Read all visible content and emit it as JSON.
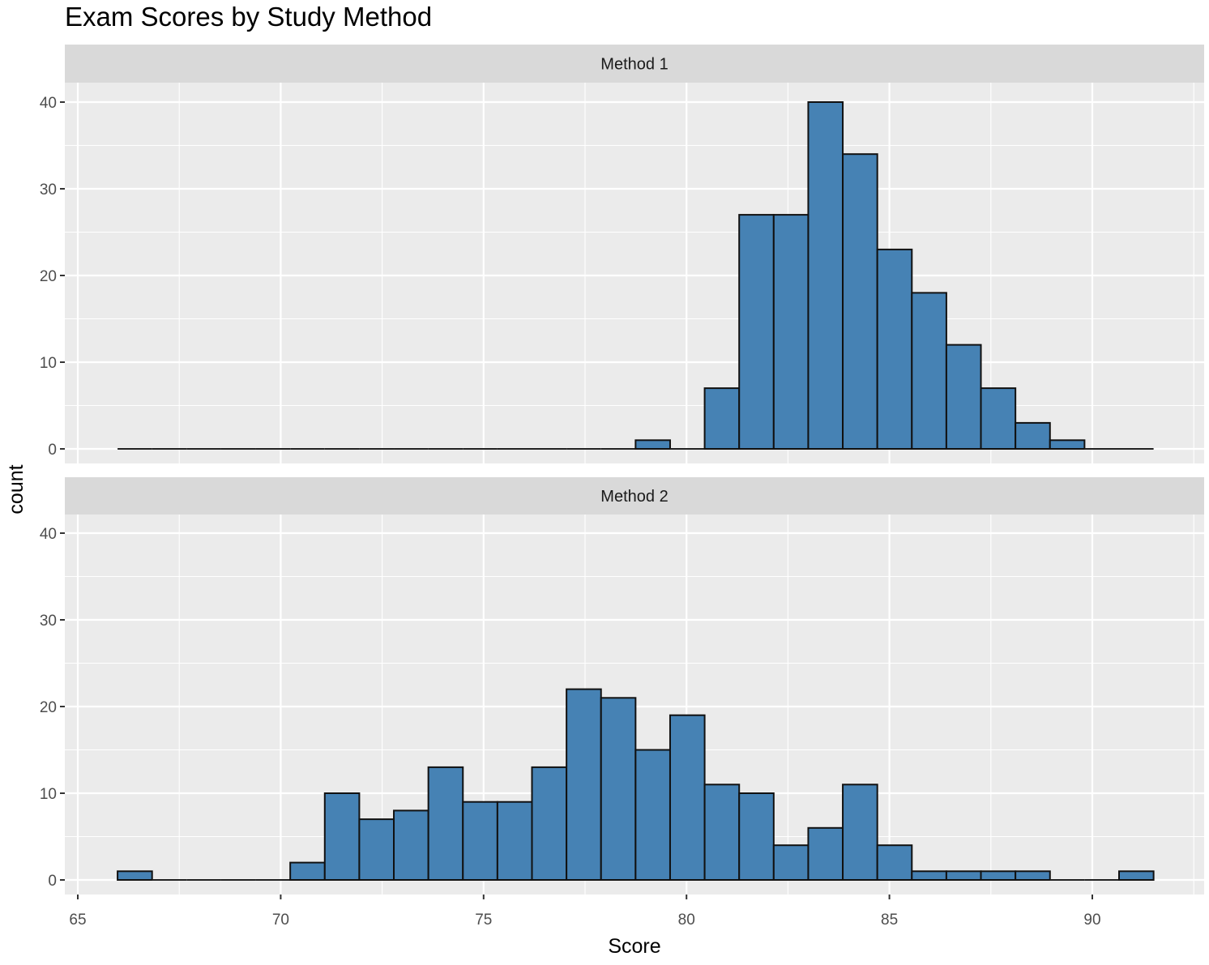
{
  "title": "Exam Scores by Study Method",
  "colors": {
    "bar_fill": "#4682B4",
    "bar_stroke": "#111111",
    "panel_bg": "#EBEBEB",
    "strip_bg": "#D9D9D9",
    "grid": "#FFFFFF"
  },
  "chart_data": {
    "type": "bar",
    "subtype": "faceted histogram",
    "title": "Exam Scores by Study Method",
    "xlabel": "Score",
    "ylabel": "count",
    "xlim": [
      64.3,
      92.5
    ],
    "ylim": [
      -1.7,
      43
    ],
    "x_ticks": [
      65,
      70,
      75,
      80,
      85,
      90
    ],
    "y_ticks": [
      0,
      10,
      20,
      30,
      40
    ],
    "grid": true,
    "bins": 30,
    "bin_start": 65.98,
    "bin_width": 0.851,
    "bin_centers": [
      66.41,
      67.26,
      68.11,
      68.96,
      69.81,
      70.66,
      71.52,
      72.37,
      73.22,
      74.07,
      74.92,
      75.77,
      76.62,
      77.48,
      78.33,
      79.18,
      80.03,
      80.88,
      81.73,
      82.58,
      83.44,
      84.29,
      85.14,
      85.99,
      86.84,
      87.69,
      88.54,
      89.4,
      90.25,
      91.1
    ],
    "series": [
      {
        "name": "Method 1",
        "values": [
          0,
          0,
          0,
          0,
          0,
          0,
          0,
          0,
          0,
          0,
          0,
          0,
          0,
          0,
          0,
          1,
          0,
          7,
          27,
          27,
          40,
          34,
          23,
          18,
          12,
          7,
          3,
          1,
          0,
          0
        ]
      },
      {
        "name": "Method 2",
        "values": [
          1,
          0,
          0,
          0,
          0,
          2,
          10,
          7,
          8,
          13,
          9,
          9,
          13,
          22,
          21,
          15,
          19,
          11,
          10,
          4,
          6,
          11,
          4,
          1,
          1,
          1,
          1,
          0,
          0,
          1
        ]
      }
    ]
  },
  "facets": [
    {
      "label": "Method 1"
    },
    {
      "label": "Method 2"
    }
  ],
  "axes": {
    "x_title": "Score",
    "y_title": "count",
    "x_tick_labels": [
      "65",
      "70",
      "75",
      "80",
      "85",
      "90"
    ],
    "y_tick_labels": [
      "0",
      "10",
      "20",
      "30",
      "40"
    ]
  }
}
